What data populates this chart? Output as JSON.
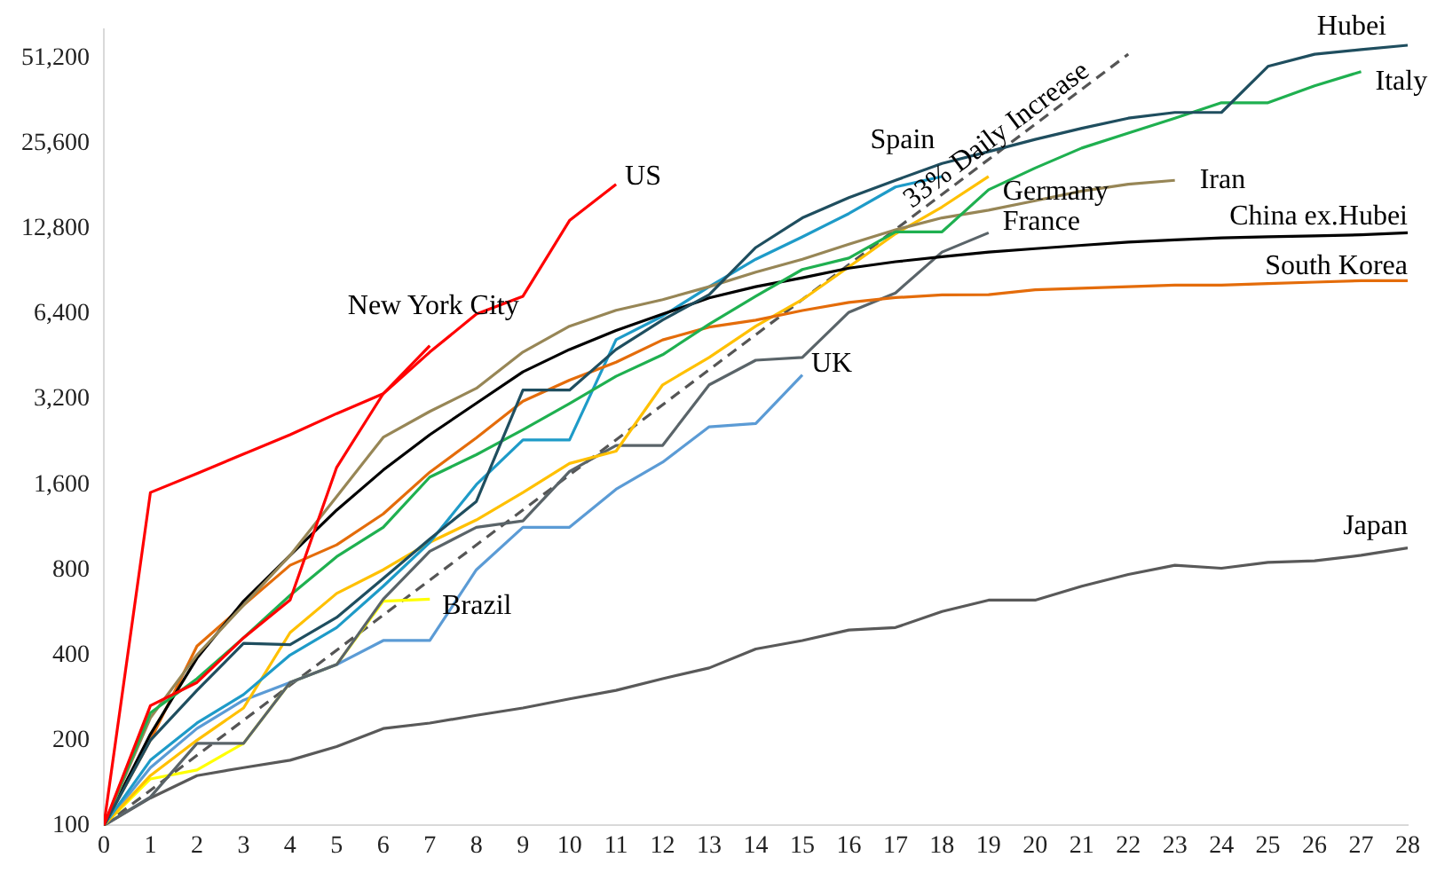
{
  "chart_data": {
    "type": "line",
    "log": "y",
    "grid": false,
    "legend": false,
    "marker": "none",
    "line_style": "solid",
    "xlim": [
      0,
      28
    ],
    "xticks": [
      0,
      1,
      2,
      3,
      4,
      5,
      6,
      7,
      8,
      9,
      10,
      11,
      12,
      13,
      14,
      15,
      16,
      17,
      18,
      19,
      20,
      21,
      22,
      23,
      24,
      25,
      26,
      27,
      28
    ],
    "ylim": [
      100,
      65000
    ],
    "yticks": [
      100,
      200,
      400,
      800,
      {
        "value": 1600,
        "label": "1,600"
      },
      {
        "value": 3200,
        "label": "3,200"
      },
      {
        "value": 6400,
        "label": "6,400"
      },
      {
        "value": 12800,
        "label": "12,800"
      },
      {
        "value": 25600,
        "label": "25,600"
      },
      {
        "value": 51200,
        "label": "51,200"
      }
    ],
    "series": [
      {
        "name": "US",
        "color": "#ff0000",
        "x": [
          0,
          1,
          2,
          3,
          4,
          5,
          6,
          7,
          8,
          9,
          10,
          11
        ],
        "values": [
          100,
          1500,
          1750,
          2050,
          2400,
          2850,
          3350,
          4700,
          6400,
          7400,
          13700,
          18400
        ]
      },
      {
        "name": "New York City",
        "color": "#ff0000",
        "x": [
          0,
          1,
          2,
          3,
          4,
          5,
          6,
          7
        ],
        "values": [
          100,
          265,
          320,
          460,
          626,
          1840,
          3350,
          4950
        ]
      },
      {
        "name": "Hubei",
        "color": "#1f4e5f",
        "x": [
          0,
          1,
          2,
          3,
          4,
          5,
          6,
          7,
          8,
          9,
          10,
          11,
          12,
          13,
          14,
          15,
          16,
          17,
          18,
          19,
          20,
          21,
          22,
          23,
          24,
          25,
          26,
          27,
          28
        ],
        "values": [
          100,
          200,
          300,
          440,
          435,
          543,
          746,
          1028,
          1395,
          3450,
          3450,
          4800,
          6100,
          7500,
          11000,
          14000,
          16500,
          19000,
          21800,
          24000,
          26500,
          29000,
          31500,
          33000,
          33000,
          48000,
          53000,
          55000,
          57000
        ]
      },
      {
        "name": "Italy",
        "color": "#1fb050",
        "x": [
          0,
          1,
          2,
          3,
          4,
          5,
          6,
          7,
          8,
          9,
          10,
          11,
          12,
          13,
          14,
          15,
          16,
          17,
          18,
          19,
          20,
          21,
          22,
          23,
          24,
          25,
          26,
          27
        ],
        "values": [
          100,
          250,
          330,
          460,
          650,
          890,
          1130,
          1700,
          2040,
          2500,
          3090,
          3860,
          4600,
          5900,
          7400,
          9200,
          10100,
          12500,
          12500,
          17600,
          21000,
          24700,
          27900,
          31500,
          35700,
          35700,
          41000,
          46000
        ]
      },
      {
        "name": "Iran",
        "color": "#978656",
        "x": [
          0,
          1,
          2,
          3,
          4,
          5,
          6,
          7,
          8,
          9,
          10,
          11,
          12,
          13,
          14,
          15,
          16,
          17,
          18,
          19,
          20,
          21,
          22,
          23
        ],
        "values": [
          100,
          240,
          400,
          600,
          900,
          1450,
          2350,
          2900,
          3500,
          4700,
          5800,
          6600,
          7200,
          8000,
          9000,
          10000,
          11300,
          12700,
          14000,
          14900,
          16100,
          17400,
          18400,
          19000
        ]
      },
      {
        "name": "China ex.Hubei",
        "color": "#000000",
        "x": [
          0,
          1,
          2,
          3,
          4,
          5,
          6,
          7,
          8,
          9,
          10,
          11,
          12,
          13,
          14,
          15,
          16,
          17,
          18,
          19,
          20,
          21,
          22,
          23,
          24,
          25,
          26,
          27,
          28
        ],
        "values": [
          100,
          210,
          390,
          620,
          900,
          1300,
          1800,
          2400,
          3100,
          4000,
          4800,
          5600,
          6400,
          7300,
          8000,
          8600,
          9300,
          9800,
          10200,
          10600,
          10900,
          11200,
          11500,
          11700,
          11900,
          12000,
          12100,
          12200,
          12400
        ]
      },
      {
        "name": "South Korea",
        "color": "#e46c0a",
        "x": [
          0,
          1,
          2,
          3,
          4,
          5,
          6,
          7,
          8,
          9,
          10,
          11,
          12,
          13,
          14,
          15,
          16,
          17,
          18,
          19,
          20,
          21,
          22,
          23,
          24,
          25,
          26,
          27,
          28
        ],
        "values": [
          100,
          200,
          430,
          600,
          830,
          980,
          1260,
          1770,
          2340,
          3150,
          3740,
          4330,
          5190,
          5760,
          6090,
          6590,
          7040,
          7320,
          7480,
          7500,
          7800,
          7900,
          8000,
          8100,
          8100,
          8200,
          8300,
          8400,
          8400
        ]
      },
      {
        "name": "Spain",
        "color": "#1e9bc8",
        "x": [
          0,
          1,
          2,
          3,
          4,
          5,
          6,
          7,
          8,
          9,
          10,
          11,
          12,
          13,
          14,
          15,
          16,
          17,
          18
        ],
        "values": [
          100,
          170,
          230,
          290,
          400,
          500,
          700,
          1000,
          1600,
          2300,
          2300,
          5200,
          6300,
          8000,
          10000,
          12000,
          14500,
          18000,
          19600
        ]
      },
      {
        "name": "Germany",
        "color": "#ffc000",
        "x": [
          0,
          1,
          2,
          3,
          4,
          5,
          6,
          7,
          8,
          9,
          10,
          11,
          12,
          13,
          14,
          15,
          16,
          17,
          18,
          19
        ],
        "values": [
          100,
          150,
          200,
          260,
          480,
          660,
          800,
          1000,
          1200,
          1500,
          1900,
          2100,
          3600,
          4500,
          5800,
          7200,
          9400,
          12300,
          15300,
          19600
        ]
      },
      {
        "name": "France",
        "color": "#5a6469",
        "x": [
          0,
          1,
          2,
          3,
          4,
          5,
          6,
          7,
          8,
          9,
          10,
          11,
          12,
          13,
          14,
          15,
          16,
          17,
          18,
          19
        ],
        "values": [
          100,
          126,
          195,
          195,
          320,
          370,
          630,
          930,
          1130,
          1190,
          1780,
          2200,
          2200,
          3600,
          4400,
          4500,
          6500,
          7600,
          10600,
          12400
        ]
      },
      {
        "name": "UK",
        "color": "#5b9bd5",
        "x": [
          0,
          1,
          2,
          3,
          4,
          5,
          6,
          7,
          8,
          9,
          10,
          11,
          12,
          13,
          14,
          15
        ],
        "values": [
          100,
          160,
          220,
          277,
          320,
          370,
          450,
          450,
          800,
          1130,
          1130,
          1540,
          1920,
          2560,
          2630,
          3900
        ]
      },
      {
        "name": "Brazil",
        "color": "#ffff00",
        "x": [
          0,
          1,
          2,
          3,
          4,
          5,
          6,
          7
        ],
        "values": [
          100,
          146,
          157,
          195,
          320,
          370,
          620,
          630
        ]
      },
      {
        "name": "Japan",
        "color": "#595959",
        "x": [
          0,
          1,
          2,
          3,
          4,
          5,
          6,
          7,
          8,
          9,
          10,
          11,
          12,
          13,
          14,
          15,
          16,
          17,
          18,
          19,
          20,
          21,
          22,
          23,
          24,
          25,
          26,
          27,
          28
        ],
        "values": [
          100,
          125,
          150,
          160,
          170,
          190,
          220,
          230,
          245,
          260,
          280,
          300,
          330,
          360,
          420,
          450,
          490,
          500,
          570,
          625,
          625,
          700,
          770,
          830,
          810,
          850,
          860,
          900,
          955
        ]
      },
      {
        "name": "33% Daily Increase",
        "color": "#555555",
        "line_style": "dashed",
        "x": [
          0,
          22
        ],
        "values": [
          100,
          53000
        ]
      }
    ]
  }
}
